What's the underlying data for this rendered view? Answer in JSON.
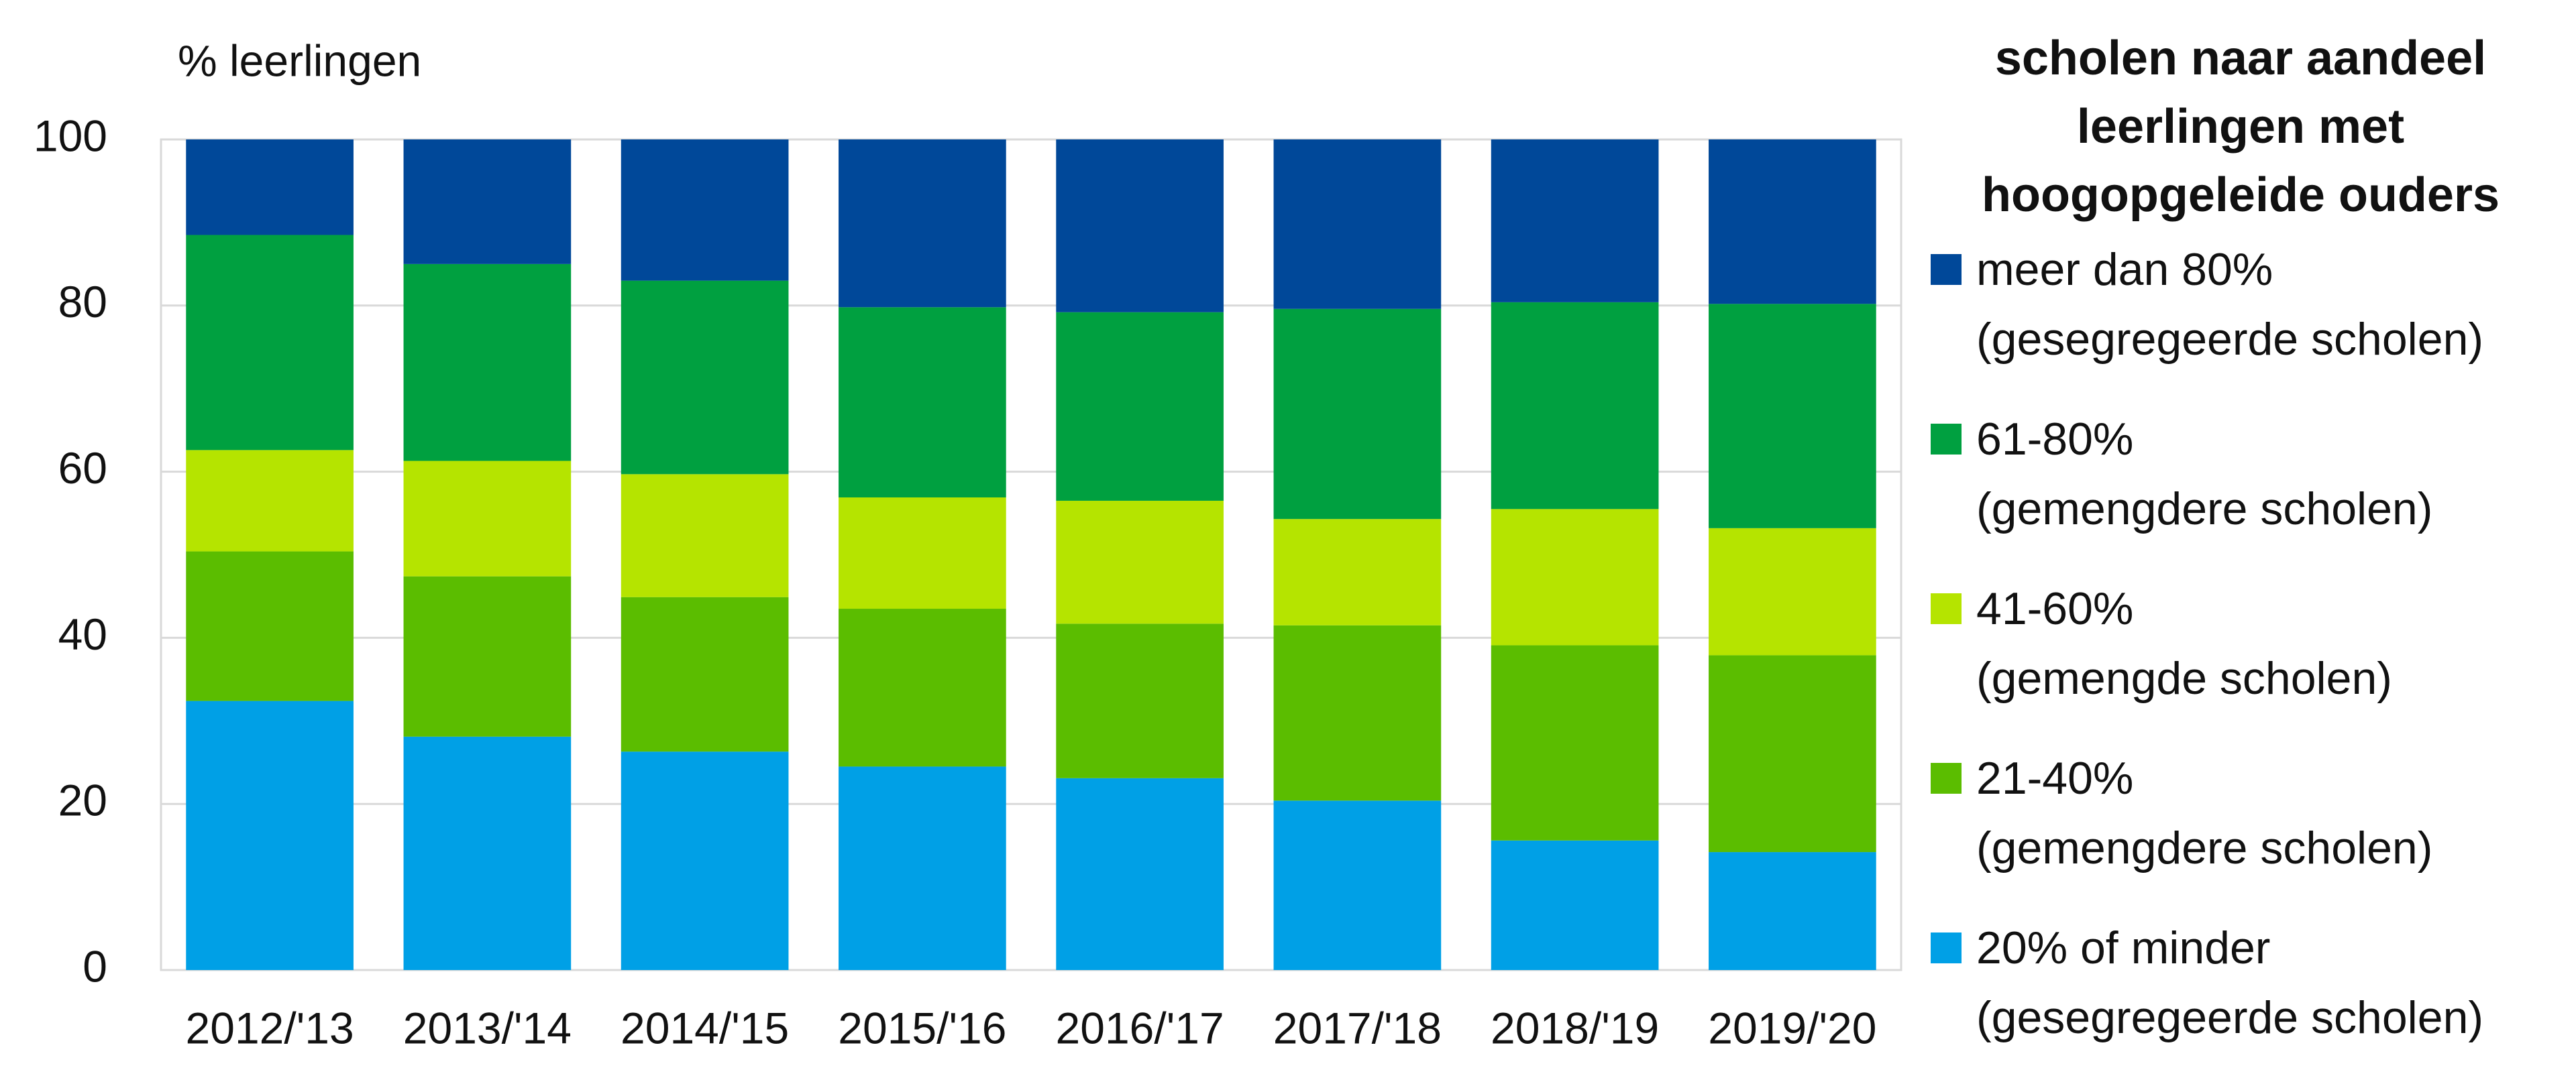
{
  "chart_data": {
    "type": "stacked-bar",
    "y_label": "% leerlingen",
    "legend_title": "scholen naar aandeel\nleerlingen met\nhoogopgeleide ouders",
    "categories": [
      "2012/'13",
      "2013/'14",
      "2014/'15",
      "2015/'16",
      "2016/'17",
      "2017/'18",
      "2018/'19",
      "2019/'20"
    ],
    "series": [
      {
        "name": "20% of minder\n(gesegregeerde scholen)",
        "color": "#00a0e6",
        "values": [
          32.4,
          28.1,
          26.3,
          24.5,
          23.1,
          20.4,
          15.6,
          14.2
        ]
      },
      {
        "name": "21-40%\n(gemengdere scholen)",
        "color": "#5bbd00",
        "values": [
          18.0,
          19.3,
          18.6,
          19.0,
          18.6,
          21.1,
          23.5,
          23.7
        ]
      },
      {
        "name": "41-60%\n(gemengde scholen)",
        "color": "#b5e400",
        "values": [
          12.2,
          13.9,
          14.8,
          13.4,
          14.8,
          12.8,
          16.4,
          15.3
        ]
      },
      {
        "name": "61-80%\n(gemengdere scholen)",
        "color": "#00a040",
        "values": [
          25.9,
          23.7,
          23.3,
          22.9,
          22.7,
          25.3,
          24.9,
          27.0
        ]
      },
      {
        "name": "meer dan 80%\n(gesegregeerde scholen)",
        "color": "#004899",
        "values": [
          11.5,
          15.0,
          17.0,
          20.2,
          20.8,
          20.4,
          19.6,
          19.8
        ]
      }
    ],
    "ylim": [
      0,
      100
    ],
    "yticks": [
      0,
      20,
      40,
      60,
      80,
      100
    ],
    "grid": true,
    "legend": "right"
  }
}
